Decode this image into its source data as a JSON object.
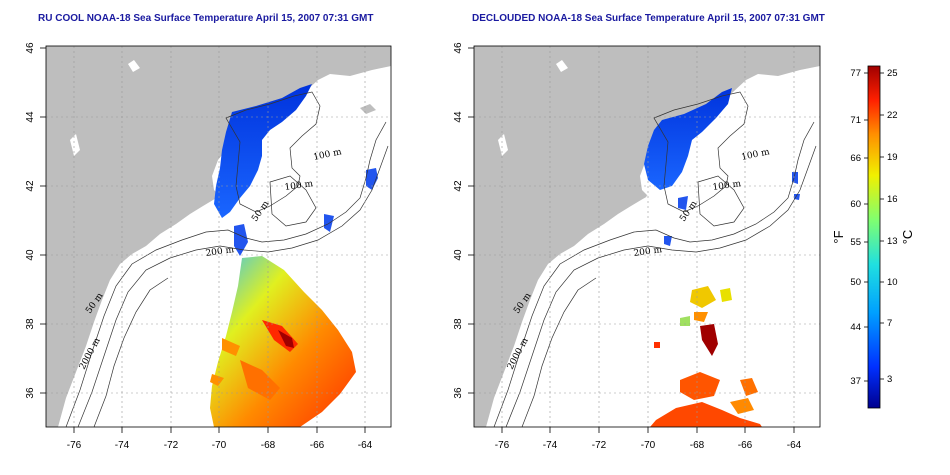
{
  "panels": [
    {
      "title": "RU COOL NOAA-18 Sea Surface Temperature April 15, 2007 07:31 GMT",
      "isobaths": [
        "100 m",
        "100 m",
        "50 m",
        "200 m",
        "50 m",
        "2000 m"
      ]
    },
    {
      "title": "DECLOUDED NOAA-18 Sea Surface Temperature April 15, 2007 07:31 GMT",
      "isobaths": [
        "100 m",
        "100 m",
        "50 m",
        "200 m",
        "50 m",
        "2000 m"
      ]
    }
  ],
  "axes": {
    "lat_ticks": [
      "46",
      "44",
      "42",
      "40",
      "38",
      "36"
    ],
    "lon_ticks": [
      "-76",
      "-74",
      "-72",
      "-70",
      "-68",
      "-66",
      "-64"
    ],
    "grid": "dotted"
  },
  "colorbar": {
    "fahrenheit_ticks": [
      "77",
      "71",
      "66",
      "60",
      "55",
      "50",
      "44",
      "37"
    ],
    "celsius_ticks": [
      "25",
      "22",
      "19",
      "16",
      "13",
      "10",
      "7",
      "3"
    ],
    "unit_left": "°F",
    "unit_right": "°C",
    "colors": [
      "#00008f",
      "#0030ff",
      "#00a0ff",
      "#20e0e0",
      "#80ff70",
      "#f0f000",
      "#ff9000",
      "#ff2000",
      "#a00000"
    ]
  },
  "colors": {
    "land": "#bebebe",
    "ocean": "#ffffff",
    "title": "#1a1aa0"
  }
}
